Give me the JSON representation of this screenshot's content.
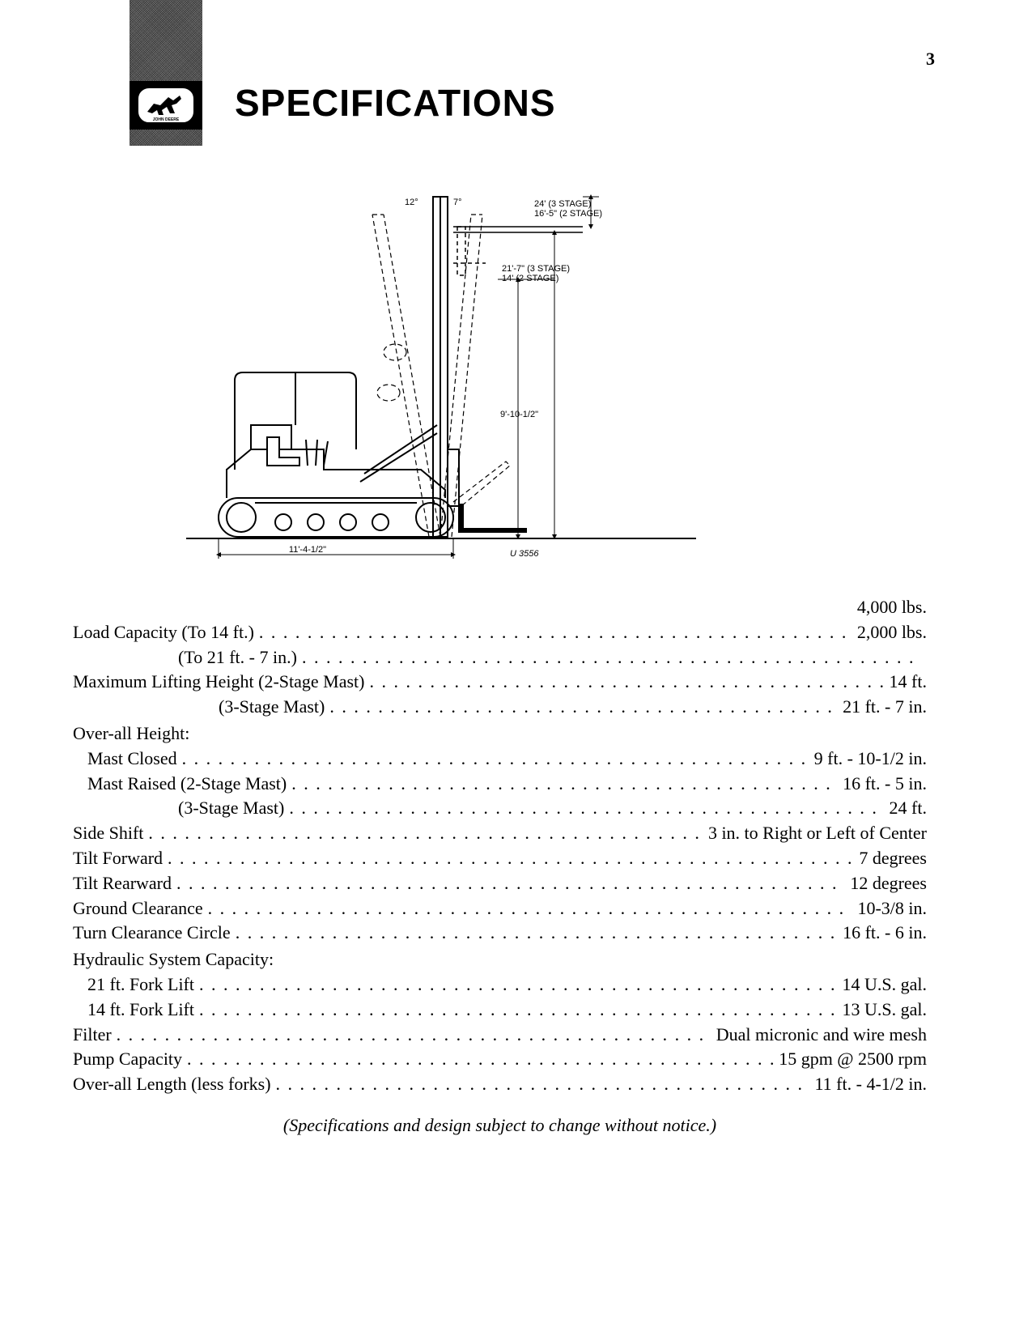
{
  "page_number": "3",
  "title": "SPECIFICATIONS",
  "brand_text": "JOHN DEERE",
  "diagram": {
    "angle_back": "12°",
    "angle_fwd": "7°",
    "height_top": "24' (3 STAGE)\n16'-5\" (2 STAGE)",
    "height_mid": "21'-7\" (3 STAGE)\n14' (2 STAGE)",
    "height_mast": "9'-10-1/2\"",
    "length_base": "11'-4-1/2\"",
    "figure_ref": "U 3556"
  },
  "specs": [
    {
      "label": "",
      "value": "4,000 lbs."
    },
    {
      "label": "Load Capacity (To 14 ft.)",
      "value": "2,000 lbs."
    },
    {
      "label": "(To 21 ft. - 7 in.)",
      "indent": "indent2",
      "value": ""
    },
    {
      "label": "Maximum Lifting Height (2-Stage Mast)",
      "value": "14 ft."
    },
    {
      "label": "(3-Stage Mast)",
      "indent": "indent3",
      "value": "21 ft. - 7 in."
    },
    {
      "label": "Over-all Height:",
      "heading": true
    },
    {
      "label": "Mast Closed",
      "indent": "indent1",
      "value": "9 ft. - 10-1/2 in."
    },
    {
      "label": "Mast Raised (2-Stage Mast)",
      "indent": "indent1",
      "value": "16 ft. - 5 in."
    },
    {
      "label": "(3-Stage Mast)",
      "indent": "indent2",
      "value": "24 ft."
    },
    {
      "label": "Side Shift",
      "value": "3 in. to Right or Left of Center"
    },
    {
      "label": "Tilt Forward",
      "value": "7 degrees"
    },
    {
      "label": "Tilt Rearward",
      "value": "12 degrees"
    },
    {
      "label": "Ground Clearance",
      "value": "10-3/8 in."
    },
    {
      "label": "Turn Clearance Circle",
      "value": "16 ft. - 6 in."
    },
    {
      "label": "Hydraulic System Capacity:",
      "heading": true
    },
    {
      "label": "21 ft. Fork Lift",
      "indent": "indent1",
      "value": "14 U.S. gal."
    },
    {
      "label": "14 ft. Fork Lift",
      "indent": "indent1",
      "value": "13 U.S. gal."
    },
    {
      "label": "Filter",
      "value": "Dual micronic and wire mesh"
    },
    {
      "label": "Pump Capacity",
      "value": "15 gpm @ 2500 rpm"
    },
    {
      "label": "Over-all Length (less forks)",
      "value": "11 ft. - 4-1/2 in."
    }
  ],
  "notice": "(Specifications and design subject to change without notice.)"
}
